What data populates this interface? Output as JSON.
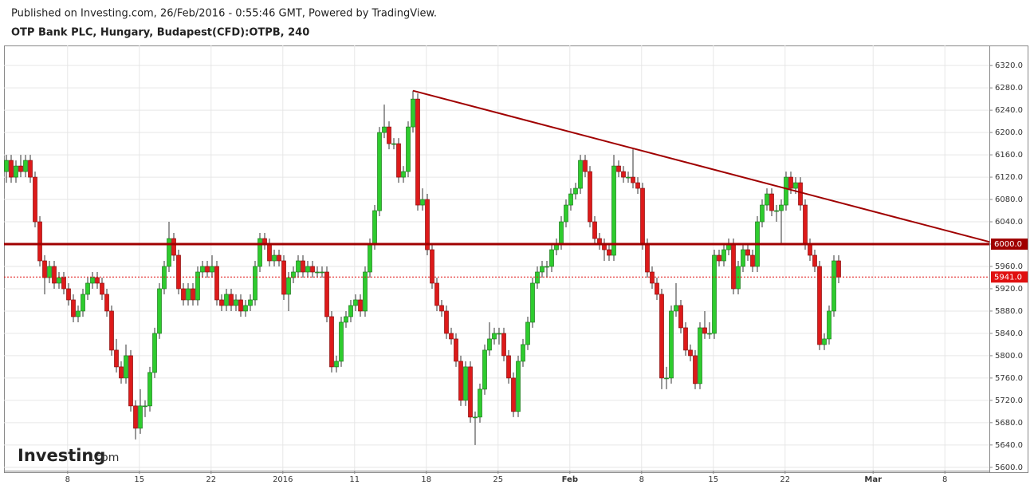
{
  "chart_data": {
    "type": "candlestick",
    "subtitle": "Published on Investing.com, 26/Feb/2016 - 0:55:46 GMT, Powered by TradingView.",
    "title": "OTP Bank PLC, Hungary, Budapest(CFD):OTPB, 240",
    "watermark": {
      "brand": "Investing",
      "suffix": ".com"
    },
    "up_color": "#2ecc2e",
    "down_color": "#dd1a1a",
    "grid": true,
    "ylim": [
      5594,
      6356
    ],
    "xlim": [
      -0.5,
      205.5
    ],
    "yticks": [
      {
        "value": 5600,
        "label": "5600.0"
      },
      {
        "value": 5640,
        "label": "5640.0"
      },
      {
        "value": 5680,
        "label": "5680.0"
      },
      {
        "value": 5720,
        "label": "5720.0"
      },
      {
        "value": 5760,
        "label": "5760.0"
      },
      {
        "value": 5800,
        "label": "5800.0"
      },
      {
        "value": 5840,
        "label": "5840.0"
      },
      {
        "value": 5880,
        "label": "5880.0"
      },
      {
        "value": 5920,
        "label": "5920.0"
      },
      {
        "value": 5960,
        "label": "5960.0"
      },
      {
        "value": 6000,
        "label": "6000.0"
      },
      {
        "value": 6040,
        "label": "6040.0"
      },
      {
        "value": 6080,
        "label": "6080.0"
      },
      {
        "value": 6120,
        "label": "6120.0"
      },
      {
        "value": 6160,
        "label": "6160.0"
      },
      {
        "value": 6200,
        "label": "6200.0"
      },
      {
        "value": 6240,
        "label": "6240.0"
      },
      {
        "value": 6280,
        "label": "6280.0"
      },
      {
        "value": 6320,
        "label": "6320.0"
      }
    ],
    "xticks": [
      {
        "value": 12.8,
        "label": "8"
      },
      {
        "value": 27.8,
        "label": "15"
      },
      {
        "value": 42.8,
        "label": "22"
      },
      {
        "value": 57.8,
        "label": "2016"
      },
      {
        "value": 72.8,
        "label": "11"
      },
      {
        "value": 87.8,
        "label": "18"
      },
      {
        "value": 102.8,
        "label": "25"
      },
      {
        "value": 117.8,
        "label": "Feb"
      },
      {
        "value": 132.8,
        "label": "8"
      },
      {
        "value": 147.8,
        "label": "15"
      },
      {
        "value": 162.8,
        "label": "22"
      },
      {
        "value": 181.2,
        "label": "Mar"
      },
      {
        "value": 196.2,
        "label": "8"
      }
    ],
    "levels": [
      {
        "value": 6000,
        "label": "6000.0",
        "color": "#a00000"
      },
      {
        "value": 5941,
        "label": "5941.0",
        "color": "#e01010"
      }
    ],
    "trendline": {
      "start": [
        85,
        6275
      ],
      "end": [
        205.5,
        6004
      ],
      "color": "#a00000"
    },
    "ohlc": [
      [
        6130,
        6160,
        6110,
        6150
      ],
      [
        6150,
        6160,
        6110,
        6120
      ],
      [
        6120,
        6150,
        6110,
        6140
      ],
      [
        6140,
        6160,
        6120,
        6130
      ],
      [
        6130,
        6160,
        6120,
        6150
      ],
      [
        6150,
        6160,
        6110,
        6120
      ],
      [
        6120,
        6130,
        6030,
        6040
      ],
      [
        6040,
        6050,
        5960,
        5970
      ],
      [
        5970,
        5980,
        5910,
        5940
      ],
      [
        5940,
        5970,
        5930,
        5960
      ],
      [
        5960,
        5970,
        5920,
        5930
      ],
      [
        5930,
        5950,
        5920,
        5940
      ],
      [
        5940,
        5950,
        5910,
        5920
      ],
      [
        5920,
        5930,
        5890,
        5900
      ],
      [
        5900,
        5910,
        5860,
        5870
      ],
      [
        5870,
        5890,
        5860,
        5880
      ],
      [
        5880,
        5920,
        5870,
        5910
      ],
      [
        5910,
        5940,
        5900,
        5930
      ],
      [
        5930,
        5950,
        5920,
        5940
      ],
      [
        5940,
        5950,
        5920,
        5930
      ],
      [
        5930,
        5940,
        5900,
        5910
      ],
      [
        5910,
        5920,
        5870,
        5880
      ],
      [
        5880,
        5890,
        5800,
        5810
      ],
      [
        5810,
        5830,
        5770,
        5780
      ],
      [
        5780,
        5790,
        5750,
        5760
      ],
      [
        5760,
        5820,
        5750,
        5800
      ],
      [
        5800,
        5810,
        5700,
        5710
      ],
      [
        5710,
        5720,
        5650,
        5670
      ],
      [
        5670,
        5740,
        5660,
        5710
      ],
      [
        5710,
        5720,
        5690,
        5710
      ],
      [
        5710,
        5780,
        5700,
        5770
      ],
      [
        5770,
        5850,
        5760,
        5840
      ],
      [
        5840,
        5930,
        5830,
        5920
      ],
      [
        5920,
        5970,
        5910,
        5960
      ],
      [
        5960,
        6040,
        5950,
        6010
      ],
      [
        6010,
        6020,
        5970,
        5980
      ],
      [
        5980,
        5990,
        5910,
        5920
      ],
      [
        5920,
        5930,
        5890,
        5900
      ],
      [
        5900,
        5930,
        5890,
        5920
      ],
      [
        5920,
        5930,
        5890,
        5900
      ],
      [
        5900,
        5960,
        5890,
        5950
      ],
      [
        5950,
        5970,
        5940,
        5960
      ],
      [
        5960,
        5970,
        5940,
        5950
      ],
      [
        5950,
        5980,
        5940,
        5960
      ],
      [
        5960,
        5970,
        5890,
        5900
      ],
      [
        5900,
        5910,
        5880,
        5890
      ],
      [
        5890,
        5920,
        5880,
        5910
      ],
      [
        5910,
        5920,
        5880,
        5890
      ],
      [
        5890,
        5910,
        5880,
        5900
      ],
      [
        5900,
        5910,
        5870,
        5880
      ],
      [
        5880,
        5900,
        5870,
        5890
      ],
      [
        5890,
        5910,
        5880,
        5900
      ],
      [
        5900,
        5970,
        5890,
        5960
      ],
      [
        5960,
        6020,
        5950,
        6010
      ],
      [
        6010,
        6020,
        5990,
        6000
      ],
      [
        6000,
        6010,
        5960,
        5970
      ],
      [
        5970,
        5990,
        5960,
        5980
      ],
      [
        5980,
        5990,
        5960,
        5970
      ],
      [
        5970,
        5980,
        5900,
        5910
      ],
      [
        5910,
        5950,
        5880,
        5940
      ],
      [
        5940,
        5960,
        5930,
        5950
      ],
      [
        5950,
        5980,
        5940,
        5970
      ],
      [
        5970,
        5980,
        5940,
        5950
      ],
      [
        5950,
        5970,
        5940,
        5960
      ],
      [
        5960,
        5970,
        5940,
        5950
      ],
      [
        5950,
        5960,
        5940,
        5950
      ],
      [
        5950,
        5960,
        5940,
        5950
      ],
      [
        5950,
        5960,
        5860,
        5870
      ],
      [
        5870,
        5880,
        5770,
        5780
      ],
      [
        5780,
        5800,
        5770,
        5790
      ],
      [
        5790,
        5870,
        5780,
        5860
      ],
      [
        5860,
        5880,
        5850,
        5870
      ],
      [
        5870,
        5900,
        5860,
        5890
      ],
      [
        5890,
        5910,
        5880,
        5900
      ],
      [
        5900,
        5910,
        5870,
        5880
      ],
      [
        5880,
        5960,
        5870,
        5950
      ],
      [
        5950,
        6010,
        5940,
        6000
      ],
      [
        6000,
        6070,
        5990,
        6060
      ],
      [
        6060,
        6210,
        6050,
        6200
      ],
      [
        6200,
        6250,
        6190,
        6210
      ],
      [
        6210,
        6220,
        6170,
        6180
      ],
      [
        6180,
        6190,
        6170,
        6180
      ],
      [
        6180,
        6190,
        6110,
        6120
      ],
      [
        6120,
        6140,
        6110,
        6130
      ],
      [
        6130,
        6220,
        6120,
        6210
      ],
      [
        6210,
        6275,
        6200,
        6260
      ],
      [
        6260,
        6270,
        6060,
        6070
      ],
      [
        6070,
        6100,
        6060,
        6080
      ],
      [
        6080,
        6090,
        5980,
        5990
      ],
      [
        5990,
        6000,
        5920,
        5930
      ],
      [
        5930,
        5940,
        5880,
        5890
      ],
      [
        5890,
        5900,
        5870,
        5880
      ],
      [
        5880,
        5890,
        5830,
        5840
      ],
      [
        5840,
        5850,
        5820,
        5830
      ],
      [
        5830,
        5840,
        5780,
        5790
      ],
      [
        5790,
        5800,
        5710,
        5720
      ],
      [
        5720,
        5790,
        5710,
        5780
      ],
      [
        5780,
        5790,
        5680,
        5690
      ],
      [
        5690,
        5700,
        5640,
        5690
      ],
      [
        5690,
        5750,
        5680,
        5740
      ],
      [
        5740,
        5820,
        5730,
        5810
      ],
      [
        5810,
        5860,
        5800,
        5830
      ],
      [
        5830,
        5850,
        5820,
        5840
      ],
      [
        5840,
        5850,
        5820,
        5840
      ],
      [
        5840,
        5850,
        5790,
        5800
      ],
      [
        5800,
        5810,
        5750,
        5760
      ],
      [
        5760,
        5770,
        5690,
        5700
      ],
      [
        5700,
        5800,
        5690,
        5790
      ],
      [
        5790,
        5830,
        5780,
        5820
      ],
      [
        5820,
        5870,
        5810,
        5860
      ],
      [
        5860,
        5940,
        5850,
        5930
      ],
      [
        5930,
        5960,
        5920,
        5950
      ],
      [
        5950,
        5970,
        5940,
        5960
      ],
      [
        5960,
        5970,
        5940,
        5960
      ],
      [
        5960,
        6000,
        5950,
        5990
      ],
      [
        5990,
        6010,
        5980,
        6000
      ],
      [
        6000,
        6050,
        5990,
        6040
      ],
      [
        6040,
        6080,
        6030,
        6070
      ],
      [
        6070,
        6100,
        6060,
        6090
      ],
      [
        6090,
        6110,
        6080,
        6100
      ],
      [
        6100,
        6160,
        6090,
        6150
      ],
      [
        6150,
        6160,
        6120,
        6130
      ],
      [
        6130,
        6140,
        6030,
        6040
      ],
      [
        6040,
        6050,
        6000,
        6010
      ],
      [
        6010,
        6020,
        5990,
        6000
      ],
      [
        6000,
        6010,
        5970,
        5990
      ],
      [
        5990,
        6000,
        5970,
        5980
      ],
      [
        5980,
        6160,
        5970,
        6140
      ],
      [
        6140,
        6150,
        6120,
        6130
      ],
      [
        6130,
        6140,
        6110,
        6120
      ],
      [
        6120,
        6130,
        6110,
        6120
      ],
      [
        6120,
        6170,
        6100,
        6110
      ],
      [
        6110,
        6120,
        6090,
        6100
      ],
      [
        6100,
        6110,
        5990,
        6000
      ],
      [
        6000,
        6010,
        5940,
        5950
      ],
      [
        5950,
        5960,
        5920,
        5930
      ],
      [
        5930,
        5940,
        5900,
        5910
      ],
      [
        5910,
        5920,
        5740,
        5760
      ],
      [
        5760,
        5780,
        5740,
        5760
      ],
      [
        5760,
        5890,
        5750,
        5880
      ],
      [
        5880,
        5930,
        5870,
        5890
      ],
      [
        5890,
        5900,
        5840,
        5850
      ],
      [
        5850,
        5860,
        5800,
        5810
      ],
      [
        5810,
        5820,
        5790,
        5800
      ],
      [
        5800,
        5810,
        5740,
        5750
      ],
      [
        5750,
        5860,
        5740,
        5850
      ],
      [
        5850,
        5880,
        5830,
        5840
      ],
      [
        5840,
        5860,
        5830,
        5840
      ],
      [
        5840,
        5990,
        5830,
        5980
      ],
      [
        5980,
        5990,
        5960,
        5970
      ],
      [
        5970,
        6000,
        5960,
        5990
      ],
      [
        5990,
        6010,
        5980,
        6000
      ],
      [
        6000,
        6010,
        5910,
        5920
      ],
      [
        5920,
        5970,
        5910,
        5960
      ],
      [
        5960,
        6000,
        5950,
        5990
      ],
      [
        5990,
        6000,
        5970,
        5980
      ],
      [
        5980,
        5990,
        5950,
        5960
      ],
      [
        5960,
        6050,
        5950,
        6040
      ],
      [
        6040,
        6080,
        6030,
        6070
      ],
      [
        6070,
        6100,
        6060,
        6090
      ],
      [
        6090,
        6100,
        6050,
        6060
      ],
      [
        6060,
        6070,
        6040,
        6060
      ],
      [
        6060,
        6080,
        6000,
        6070
      ],
      [
        6070,
        6130,
        6060,
        6120
      ],
      [
        6120,
        6130,
        6090,
        6100
      ],
      [
        6100,
        6120,
        6090,
        6110
      ],
      [
        6110,
        6120,
        6060,
        6070
      ],
      [
        6070,
        6080,
        5990,
        6000
      ],
      [
        6000,
        6010,
        5970,
        5980
      ],
      [
        5980,
        5990,
        5950,
        5960
      ],
      [
        5960,
        5970,
        5810,
        5820
      ],
      [
        5820,
        5840,
        5810,
        5830
      ],
      [
        5830,
        5890,
        5820,
        5880
      ],
      [
        5880,
        5980,
        5870,
        5970
      ],
      [
        5970,
        5980,
        5930,
        5941
      ]
    ]
  }
}
